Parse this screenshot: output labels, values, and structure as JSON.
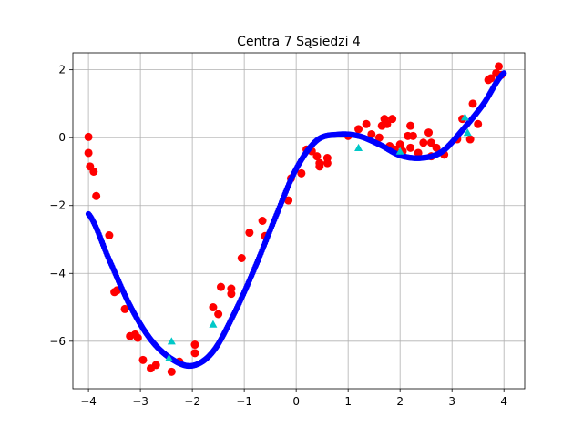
{
  "chart_data": {
    "type": "scatter",
    "title": "Centra 7 Sąsiedzi 4",
    "xlabel": "",
    "ylabel": "",
    "xlim": [
      -4.3,
      4.4
    ],
    "ylim": [
      -7.4,
      2.5
    ],
    "grid": true,
    "x_ticks": [
      -4,
      -3,
      -2,
      -1,
      0,
      1,
      2,
      3,
      4
    ],
    "y_ticks": [
      -6,
      -4,
      -2,
      0,
      2
    ],
    "x_tick_labels": [
      "−4",
      "−3",
      "−2",
      "−1",
      "0",
      "1",
      "2",
      "3",
      "4"
    ],
    "y_tick_labels": [
      "−6",
      "−4",
      "−2",
      "0",
      "2"
    ],
    "series": [
      {
        "kind": "points",
        "color": "#ff0000",
        "marker": "circle",
        "points": [
          [
            -4.0,
            0.02
          ],
          [
            -4.0,
            -0.45
          ],
          [
            -3.97,
            -0.85
          ],
          [
            -3.9,
            -1.0
          ],
          [
            -3.85,
            -1.72
          ],
          [
            -3.6,
            -2.88
          ],
          [
            -3.5,
            -4.55
          ],
          [
            -3.45,
            -4.5
          ],
          [
            -3.3,
            -5.05
          ],
          [
            -3.2,
            -5.85
          ],
          [
            -3.1,
            -5.8
          ],
          [
            -3.05,
            -5.9
          ],
          [
            -2.95,
            -6.55
          ],
          [
            -2.8,
            -6.8
          ],
          [
            -2.7,
            -6.7
          ],
          [
            -2.4,
            -6.9
          ],
          [
            -2.25,
            -6.6
          ],
          [
            -1.95,
            -6.1
          ],
          [
            -1.95,
            -6.35
          ],
          [
            -1.6,
            -5.0
          ],
          [
            -1.5,
            -5.2
          ],
          [
            -1.45,
            -4.4
          ],
          [
            -1.25,
            -4.45
          ],
          [
            -1.25,
            -4.6
          ],
          [
            -1.05,
            -3.55
          ],
          [
            -0.9,
            -2.8
          ],
          [
            -0.65,
            -2.45
          ],
          [
            -0.6,
            -2.9
          ],
          [
            -0.15,
            -1.85
          ],
          [
            -0.1,
            -1.2
          ],
          [
            0.1,
            -1.05
          ],
          [
            0.2,
            -0.35
          ],
          [
            0.3,
            -0.4
          ],
          [
            0.4,
            -0.55
          ],
          [
            0.45,
            -0.75
          ],
          [
            0.45,
            -0.85
          ],
          [
            0.6,
            -0.6
          ],
          [
            0.6,
            -0.75
          ],
          [
            1.0,
            0.05
          ],
          [
            1.2,
            0.25
          ],
          [
            1.35,
            0.4
          ],
          [
            1.45,
            0.1
          ],
          [
            1.6,
            0.0
          ],
          [
            1.65,
            0.35
          ],
          [
            1.7,
            0.55
          ],
          [
            1.75,
            0.4
          ],
          [
            1.8,
            -0.25
          ],
          [
            1.85,
            0.55
          ],
          [
            1.9,
            -0.35
          ],
          [
            2.0,
            -0.2
          ],
          [
            2.05,
            -0.4
          ],
          [
            2.15,
            0.05
          ],
          [
            2.2,
            -0.3
          ],
          [
            2.2,
            0.35
          ],
          [
            2.25,
            0.05
          ],
          [
            2.35,
            -0.45
          ],
          [
            2.45,
            -0.15
          ],
          [
            2.55,
            0.15
          ],
          [
            2.6,
            -0.15
          ],
          [
            2.6,
            -0.55
          ],
          [
            2.7,
            -0.3
          ],
          [
            2.85,
            -0.5
          ],
          [
            3.1,
            -0.05
          ],
          [
            3.2,
            0.55
          ],
          [
            3.35,
            -0.05
          ],
          [
            3.4,
            1.0
          ],
          [
            3.5,
            0.4
          ],
          [
            3.7,
            1.7
          ],
          [
            3.75,
            1.75
          ],
          [
            3.85,
            1.9
          ],
          [
            3.9,
            2.1
          ],
          [
            3.95,
            1.85
          ]
        ]
      },
      {
        "kind": "curve",
        "color": "#0000ff",
        "marker": "circle",
        "x_range": [
          -4,
          4
        ],
        "x": [
          -4.0,
          -3.6,
          -3.2,
          -2.8,
          -2.4,
          -2.0,
          -1.6,
          -1.2,
          -0.8,
          -0.4,
          0.0,
          0.4,
          0.8,
          1.2,
          1.6,
          2.0,
          2.4,
          2.8,
          3.2,
          3.6,
          4.0
        ],
        "y": [
          -2.25,
          -3.6,
          -4.95,
          -5.95,
          -6.52,
          -6.72,
          -6.3,
          -5.2,
          -3.85,
          -2.35,
          -0.92,
          -0.08,
          0.09,
          0.05,
          -0.2,
          -0.52,
          -0.6,
          -0.42,
          0.22,
          0.98,
          1.9
        ]
      },
      {
        "kind": "points",
        "color": "#00c8c8",
        "marker": "triangle",
        "points": [
          [
            -2.4,
            -6.0
          ],
          [
            -2.45,
            -6.5
          ],
          [
            -1.6,
            -5.5
          ],
          [
            1.2,
            -0.3
          ],
          [
            2.0,
            -0.4
          ],
          [
            3.25,
            0.6
          ],
          [
            3.3,
            0.15
          ]
        ]
      }
    ]
  }
}
